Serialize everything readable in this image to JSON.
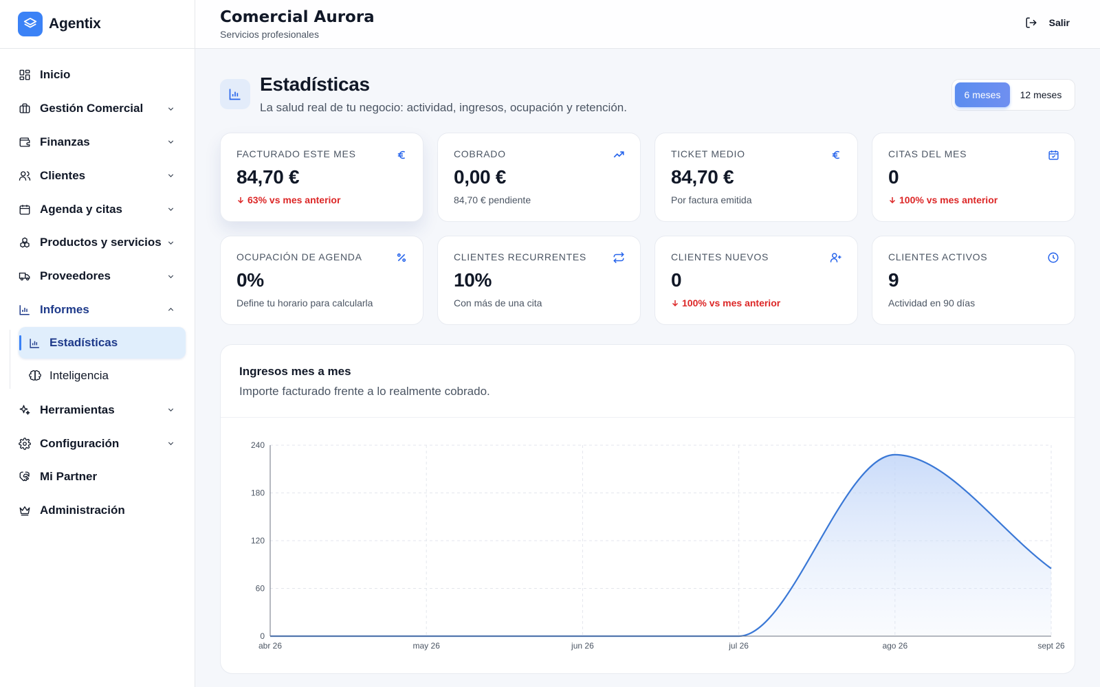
{
  "brand": {
    "name": "Agentix"
  },
  "sidebar": {
    "items": [
      {
        "label": "Inicio",
        "icon": "layout-grid-icon",
        "has_chevron": false
      },
      {
        "label": "Gestión Comercial",
        "icon": "briefcase-icon",
        "has_chevron": true
      },
      {
        "label": "Finanzas",
        "icon": "wallet-icon",
        "has_chevron": true
      },
      {
        "label": "Clientes",
        "icon": "users-icon",
        "has_chevron": true
      },
      {
        "label": "Agenda y citas",
        "icon": "calendar-icon",
        "has_chevron": true
      },
      {
        "label": "Productos y servicios",
        "icon": "boxes-icon",
        "has_chevron": true
      },
      {
        "label": "Proveedores",
        "icon": "truck-icon",
        "has_chevron": true
      },
      {
        "label": "Informes",
        "icon": "bar-chart-icon",
        "has_chevron": true,
        "expanded": true
      },
      {
        "label": "Herramientas",
        "icon": "sparkles-icon",
        "has_chevron": true
      },
      {
        "label": "Configuración",
        "icon": "gear-icon",
        "has_chevron": true
      },
      {
        "label": "Mi Partner",
        "icon": "handshake-icon",
        "has_chevron": false
      },
      {
        "label": "Administración",
        "icon": "crown-icon",
        "has_chevron": false
      }
    ],
    "submenu": [
      {
        "label": "Estadísticas",
        "icon": "bar-chart-icon",
        "active": true
      },
      {
        "label": "Inteligencia",
        "icon": "brain-icon",
        "active": false
      }
    ]
  },
  "header": {
    "business_name": "Comercial Aurora",
    "business_type": "Servicios profesionales",
    "logout_label": "Salir"
  },
  "page": {
    "title": "Estadísticas",
    "description": "La salud real de tu negocio: actividad, ingresos, ocupación y retención.",
    "range_options": [
      "6 meses",
      "12 meses"
    ],
    "range_selected": "6 meses"
  },
  "kpis": [
    {
      "label": "Facturado este mes",
      "value": "84,70 €",
      "note": "63% vs mes anterior",
      "trend": "down",
      "icon": "euro-icon"
    },
    {
      "label": "Cobrado",
      "value": "0,00 €",
      "note": "84,70 € pendiente",
      "trend": "none",
      "icon": "trending-up-icon"
    },
    {
      "label": "Ticket medio",
      "value": "84,70 €",
      "note": "Por factura emitida",
      "trend": "none",
      "icon": "euro-icon"
    },
    {
      "label": "Citas del mes",
      "value": "0",
      "note": "100% vs mes anterior",
      "trend": "down",
      "icon": "calendar-check-icon"
    },
    {
      "label": "Ocupación de agenda",
      "value": "0%",
      "note": "Define tu horario para calcularla",
      "trend": "none",
      "icon": "percent-icon"
    },
    {
      "label": "Clientes recurrentes",
      "value": "10%",
      "note": "Con más de una cita",
      "trend": "none",
      "icon": "repeat-icon"
    },
    {
      "label": "Clientes nuevos",
      "value": "0",
      "note": "100% vs mes anterior",
      "trend": "down",
      "icon": "user-plus-icon"
    },
    {
      "label": "Clientes activos",
      "value": "9",
      "note": "Actividad en 90 días",
      "trend": "none",
      "icon": "clock-icon"
    }
  ],
  "colors": {
    "accent": "#3b82f6",
    "negative": "#dc2626",
    "line": "#3a78d6"
  },
  "chart_card": {
    "title": "Ingresos mes a mes",
    "subtitle": "Importe facturado frente a lo realmente cobrado."
  },
  "chart_data": {
    "type": "area",
    "x": [
      "abr 26",
      "may 26",
      "jun 26",
      "jul 26",
      "ago 26",
      "sept 26"
    ],
    "series": [
      {
        "values": [
          0,
          0,
          0,
          0,
          228,
          85
        ]
      }
    ],
    "ylim": [
      0,
      240
    ],
    "yticks": [
      0,
      60,
      120,
      180,
      240
    ],
    "grid": true,
    "curve": "smooth"
  }
}
